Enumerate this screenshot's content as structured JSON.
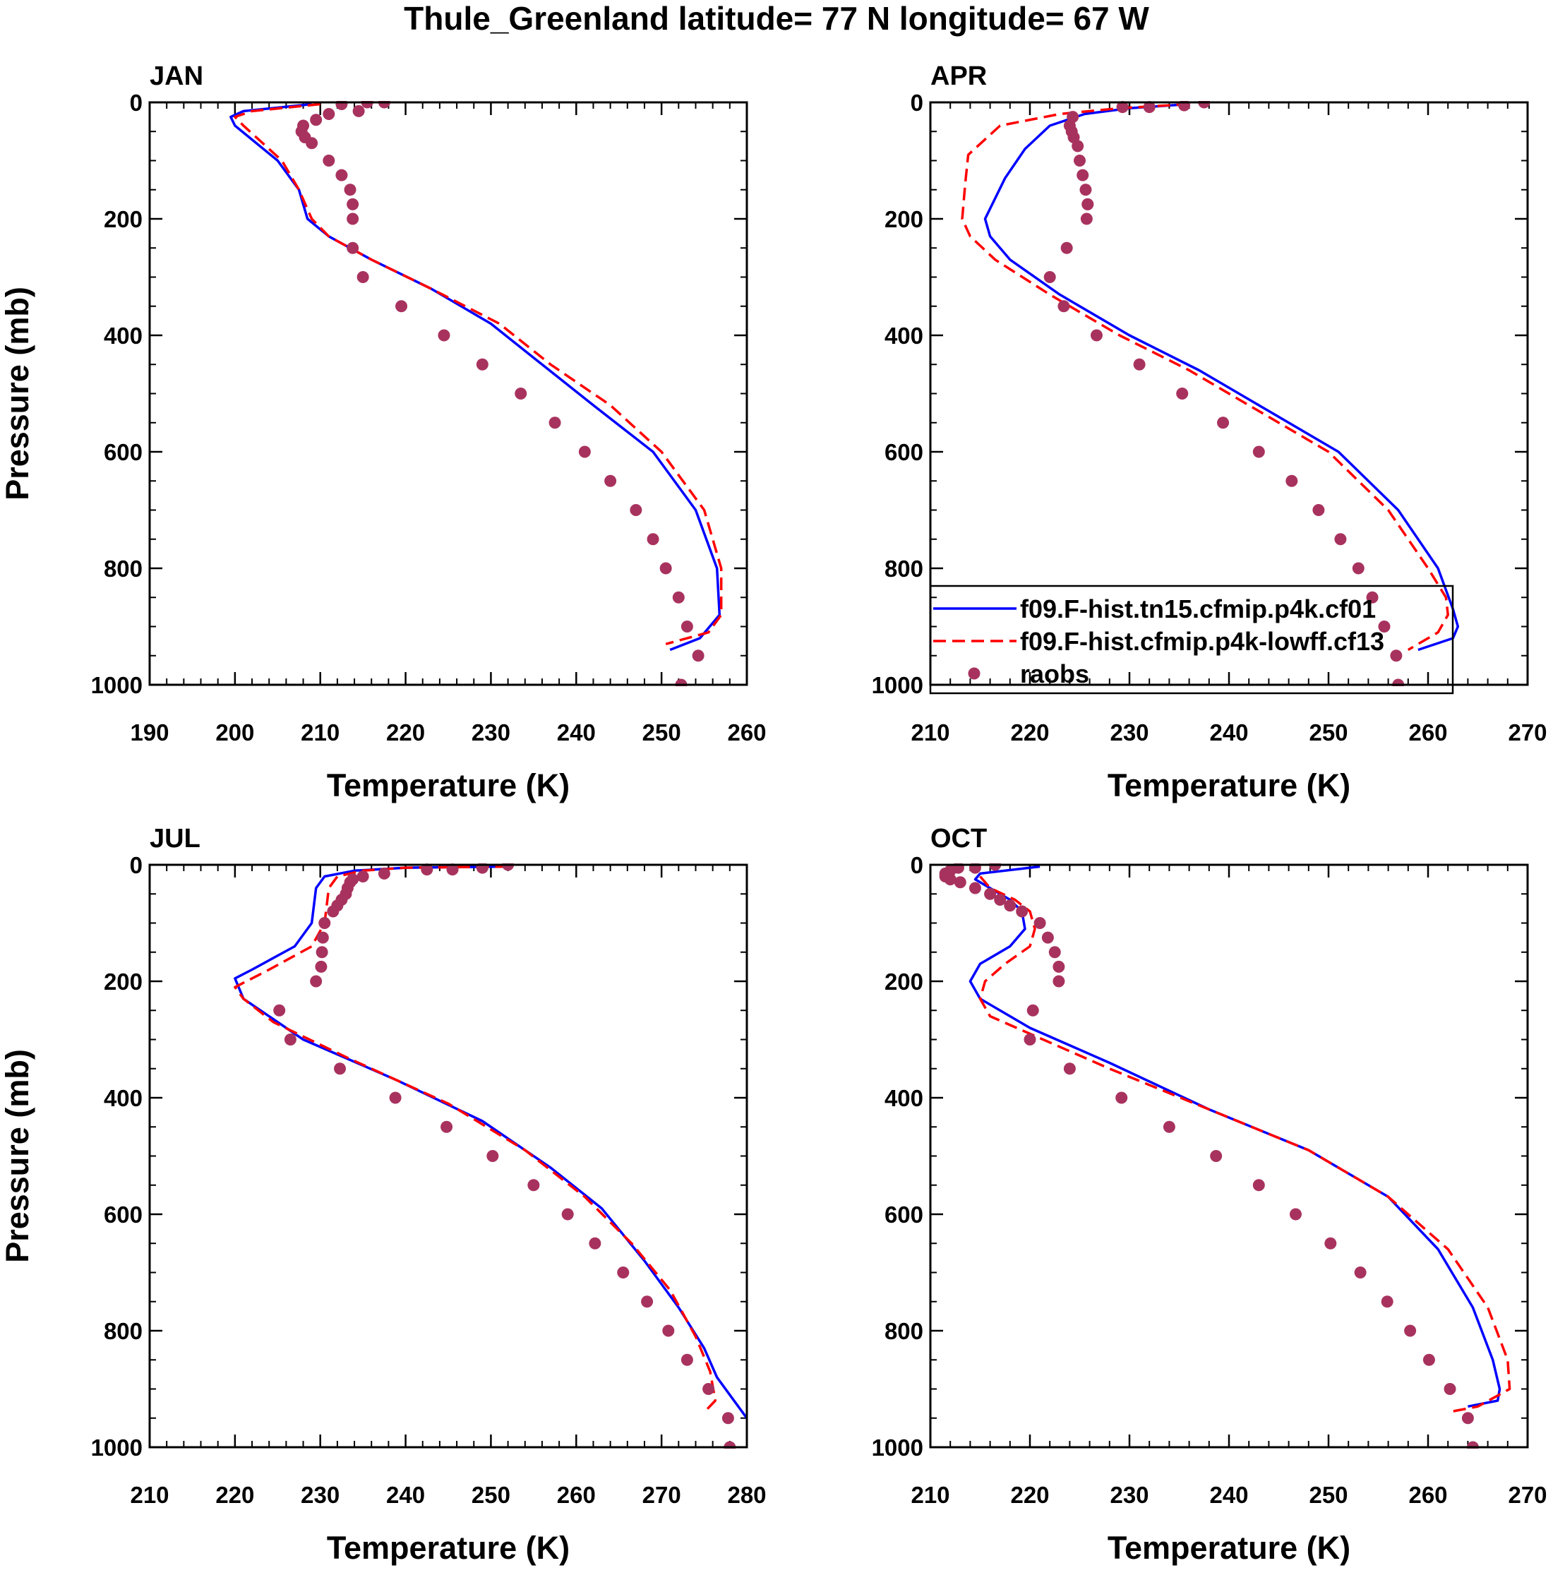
{
  "figure": {
    "title": "Thule_Greenland  latitude= 77 N longitude= 67 W"
  },
  "series_styles": {
    "cf01": {
      "color": "#0000ff",
      "style": "solid"
    },
    "cf13": {
      "color": "#ff0000",
      "style": "dashed"
    },
    "raobs": {
      "color": "#a8325e",
      "style": "markers"
    }
  },
  "legend": {
    "panel": "APR",
    "entries": [
      {
        "key": "cf01",
        "label": "f09.F-hist.tn15.cfmip.p4k.cf01"
      },
      {
        "key": "cf13",
        "label": "f09.F-hist.cfmip.p4k-lowff.cf13"
      },
      {
        "key": "raobs",
        "label": "raobs"
      }
    ]
  },
  "chart_data": [
    {
      "type": "line",
      "title": "JAN",
      "xlabel": "Temperature (K)",
      "ylabel": "Pressure (mb)",
      "xlim": [
        190,
        260
      ],
      "ylim": [
        1000,
        0
      ],
      "xticks": [
        190,
        200,
        210,
        220,
        230,
        240,
        250,
        260
      ],
      "yticks": [
        0,
        200,
        400,
        600,
        800,
        1000
      ],
      "series": [
        {
          "key": "cf01",
          "name": "f09.F-hist.tn15.cfmip.p4k.cf01",
          "temp": [
            209,
            201,
            199.5,
            200,
            205,
            207.5,
            208.5,
            211,
            216,
            223,
            230,
            236,
            242,
            249,
            254,
            256.5,
            256.8,
            254.5,
            251
          ],
          "pres": [
            3,
            15,
            25,
            40,
            100,
            150,
            200,
            230,
            270,
            320,
            380,
            450,
            520,
            600,
            700,
            800,
            880,
            920,
            940
          ]
        },
        {
          "key": "cf13",
          "name": "f09.F-hist.cfmip.p4k-lowff.cf13",
          "temp": [
            210,
            202,
            200,
            201,
            205.5,
            207.5,
            209,
            211,
            216,
            223,
            231,
            237,
            244,
            250,
            255,
            257,
            257,
            255.5,
            250.5
          ],
          "pres": [
            3,
            15,
            25,
            40,
            100,
            150,
            200,
            230,
            270,
            320,
            380,
            450,
            520,
            600,
            700,
            800,
            880,
            910,
            930
          ]
        },
        {
          "key": "raobs",
          "name": "raobs",
          "temp": [
            217.5,
            215.5,
            212.5,
            214.5,
            211,
            209.5,
            208,
            207.8,
            208.2,
            209,
            211,
            212.5,
            213.5,
            213.8,
            213.8,
            213.8,
            215,
            219.5,
            224.5,
            229,
            233.5,
            237.5,
            241,
            244,
            247,
            249,
            250.5,
            252,
            253,
            254.3,
            252.3
          ],
          "pres": [
            0,
            0,
            3,
            15,
            20,
            30,
            40,
            50,
            60,
            70,
            100,
            125,
            150,
            175,
            200,
            250,
            300,
            350,
            400,
            450,
            500,
            550,
            600,
            650,
            700,
            750,
            800,
            850,
            900,
            950,
            1000
          ]
        }
      ]
    },
    {
      "type": "line",
      "title": "APR",
      "xlabel": "Temperature (K)",
      "ylabel": "",
      "xlim": [
        210,
        270
      ],
      "ylim": [
        1000,
        0
      ],
      "xticks": [
        210,
        220,
        230,
        240,
        250,
        260,
        270
      ],
      "yticks": [
        0,
        200,
        400,
        600,
        800,
        1000
      ],
      "series": [
        {
          "key": "cf01",
          "name": "f09.F-hist.tn15.cfmip.p4k.cf01",
          "temp": [
            236,
            230,
            225.5,
            222,
            219.5,
            217.5,
            215.5,
            216,
            218,
            223,
            230,
            237,
            244,
            251,
            257,
            261,
            262.5,
            263,
            262.5,
            259
          ],
          "pres": [
            3,
            10,
            20,
            40,
            80,
            130,
            200,
            230,
            270,
            330,
            400,
            460,
            530,
            600,
            700,
            800,
            870,
            900,
            920,
            940
          ]
        },
        {
          "key": "cf13",
          "name": "f09.F-hist.cfmip.p4k-lowff.cf13",
          "temp": [
            236,
            229,
            223,
            217,
            213.8,
            213.5,
            213.2,
            214,
            216.5,
            222,
            229,
            236,
            243,
            250,
            256,
            260,
            261.8,
            262,
            261,
            258
          ],
          "pres": [
            3,
            10,
            20,
            40,
            90,
            140,
            200,
            230,
            270,
            330,
            400,
            460,
            530,
            600,
            700,
            800,
            850,
            880,
            910,
            940
          ]
        },
        {
          "key": "raobs",
          "name": "raobs",
          "temp": [
            237.5,
            235.5,
            232,
            229.3,
            224.3,
            224,
            224.2,
            224.4,
            224.8,
            225,
            225.3,
            225.6,
            225.8,
            225.8,
            225.7,
            223.7,
            222,
            223.4,
            226.7,
            231,
            235.3,
            239.4,
            243,
            246.3,
            249,
            251.2,
            253,
            254.4,
            255.6,
            256.8,
            257
          ],
          "pres": [
            0,
            5,
            8,
            8,
            25,
            40,
            50,
            60,
            75,
            100,
            125,
            150,
            175,
            175,
            200,
            250,
            300,
            350,
            400,
            450,
            500,
            550,
            600,
            650,
            700,
            750,
            800,
            850,
            900,
            950,
            1000
          ]
        }
      ]
    },
    {
      "type": "line",
      "title": "JUL",
      "xlabel": "Temperature (K)",
      "ylabel": "Pressure (mb)",
      "xlim": [
        210,
        280
      ],
      "ylim": [
        1000,
        0
      ],
      "xticks": [
        210,
        220,
        230,
        240,
        250,
        260,
        270,
        280
      ],
      "yticks": [
        0,
        200,
        400,
        600,
        800,
        1000
      ],
      "series": [
        {
          "key": "cf01",
          "name": "f09.F-hist.tn15.cfmip.p4k.cf01",
          "temp": [
            252,
            240,
            234,
            230.5,
            229.5,
            229,
            227,
            222,
            220,
            221,
            228,
            239,
            249,
            257,
            263,
            268,
            272,
            275,
            276.5,
            278,
            280
          ],
          "pres": [
            3,
            5,
            10,
            20,
            40,
            100,
            140,
            180,
            195,
            230,
            300,
            370,
            440,
            520,
            590,
            680,
            760,
            830,
            880,
            910,
            950
          ]
        },
        {
          "key": "cf13",
          "name": "f09.F-hist.cfmip.p4k-lowff.cf13",
          "temp": [
            252,
            240,
            235,
            232,
            231,
            230.5,
            229,
            224,
            220,
            221,
            224.5,
            233,
            245,
            254,
            261,
            266.5,
            271,
            274,
            275.7,
            276.3,
            275
          ],
          "pres": [
            3,
            5,
            10,
            20,
            40,
            100,
            140,
            180,
            210,
            230,
            270,
            330,
            410,
            490,
            570,
            650,
            730,
            810,
            870,
            920,
            940
          ]
        },
        {
          "key": "raobs",
          "name": "raobs",
          "temp": [
            252,
            249,
            245.5,
            242.5,
            237.5,
            235,
            233.8,
            233.5,
            233.2,
            233,
            232.5,
            232,
            231.5,
            230.5,
            230.3,
            230.2,
            230.1,
            229.5,
            225.2,
            226.5,
            232.3,
            238.8,
            244.8,
            250.2,
            255,
            259,
            262.2,
            265.5,
            268.3,
            270.8,
            273,
            275.5,
            277.8,
            278
          ],
          "pres": [
            0,
            5,
            8,
            8,
            15,
            20,
            25,
            30,
            40,
            50,
            60,
            70,
            80,
            100,
            125,
            150,
            175,
            200,
            250,
            300,
            350,
            400,
            450,
            500,
            550,
            600,
            650,
            700,
            750,
            800,
            850,
            900,
            950,
            1000
          ]
        }
      ]
    },
    {
      "type": "line",
      "title": "OCT",
      "xlabel": "Temperature (K)",
      "ylabel": "",
      "xlim": [
        210,
        270
      ],
      "ylim": [
        1000,
        0
      ],
      "xticks": [
        210,
        220,
        230,
        240,
        250,
        260,
        270
      ],
      "yticks": [
        0,
        200,
        400,
        600,
        800,
        1000
      ],
      "series": [
        {
          "key": "cf01",
          "name": "f09.F-hist.tn15.cfmip.p4k.cf01",
          "temp": [
            221,
            215,
            214.5,
            216,
            218,
            219.2,
            219.5,
            218,
            215,
            214,
            215,
            220,
            228,
            238,
            248,
            256,
            261,
            264.5,
            266.5,
            267.2,
            267,
            264
          ],
          "pres": [
            3,
            15,
            25,
            40,
            60,
            80,
            110,
            140,
            170,
            200,
            230,
            280,
            340,
            420,
            490,
            570,
            660,
            760,
            850,
            900,
            920,
            930
          ]
        },
        {
          "key": "cf13",
          "name": "f09.F-hist.cfmip.p4k-lowff.cf13",
          "temp": [
            215,
            216,
            218.5,
            220,
            220.5,
            220,
            217.5,
            215.5,
            215,
            216,
            220,
            228,
            238,
            248,
            256,
            262,
            266,
            268,
            268.2,
            265,
            262
          ],
          "pres": [
            20,
            40,
            60,
            80,
            110,
            140,
            170,
            200,
            230,
            260,
            290,
            350,
            420,
            490,
            570,
            660,
            760,
            850,
            900,
            930,
            940
          ]
        },
        {
          "key": "raobs",
          "name": "raobs",
          "temp": [
            216.5,
            214.5,
            212.8,
            212,
            211.5,
            211.5,
            212,
            213,
            214.5,
            216,
            217,
            218,
            219.2,
            221,
            221.8,
            222.5,
            222.9,
            222.9,
            220.3,
            220,
            224,
            229.2,
            234,
            238.7,
            243,
            246.7,
            250.2,
            253.2,
            255.9,
            258.2,
            260.1,
            262.2,
            264,
            264.5
          ],
          "pres": [
            0,
            5,
            5,
            10,
            15,
            20,
            25,
            30,
            40,
            50,
            60,
            70,
            80,
            100,
            125,
            150,
            175,
            200,
            250,
            300,
            350,
            400,
            450,
            500,
            550,
            600,
            650,
            700,
            750,
            800,
            850,
            900,
            950,
            1000
          ]
        }
      ]
    }
  ]
}
